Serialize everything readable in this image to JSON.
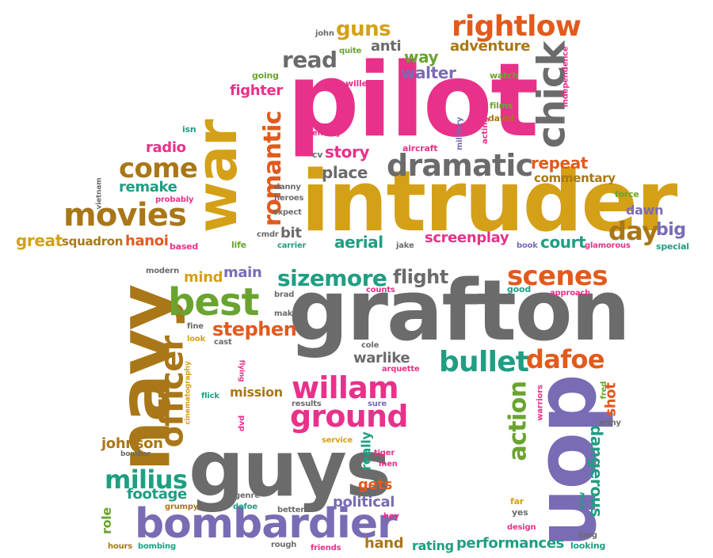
{
  "palette": {
    "pink": "#e8318a",
    "gold": "#d4a017",
    "grey": "#6b6b6b",
    "teal": "#1f9e83",
    "orange": "#e25a1c",
    "purple": "#7a6bb5",
    "green": "#6aa42f",
    "brown": "#a97718"
  },
  "words": [
    {
      "text": "pilot",
      "color": "pink"
    },
    {
      "text": "intruder",
      "color": "gold"
    },
    {
      "text": "grafton",
      "color": "grey"
    },
    {
      "text": "guys",
      "color": "grey"
    },
    {
      "text": "navy",
      "color": "brown"
    },
    {
      "text": "don",
      "color": "purple"
    },
    {
      "text": "war",
      "color": "gold"
    },
    {
      "text": "chick",
      "color": "grey"
    },
    {
      "text": "bombardier",
      "color": "purple"
    },
    {
      "text": "movies",
      "color": "brown"
    },
    {
      "text": "dramatic",
      "color": "grey"
    },
    {
      "text": "officer",
      "color": "brown"
    },
    {
      "text": "best",
      "color": "green"
    },
    {
      "text": "willam",
      "color": "pink"
    },
    {
      "text": "ground",
      "color": "pink"
    },
    {
      "text": "rightlow",
      "color": "orange"
    },
    {
      "text": "romantic",
      "color": "orange"
    },
    {
      "text": "come",
      "color": "brown"
    },
    {
      "text": "read",
      "color": "grey"
    },
    {
      "text": "guns",
      "color": "gold"
    },
    {
      "text": "scenes",
      "color": "orange"
    },
    {
      "text": "bullet",
      "color": "teal"
    },
    {
      "text": "dafoe",
      "color": "orange"
    },
    {
      "text": "sizemore",
      "color": "teal"
    },
    {
      "text": "action",
      "color": "green"
    },
    {
      "text": "milius",
      "color": "teal"
    },
    {
      "text": "day",
      "color": "brown"
    },
    {
      "text": "flight",
      "color": "grey"
    },
    {
      "text": "stephen",
      "color": "orange"
    },
    {
      "text": "dangerous",
      "color": "teal"
    },
    {
      "text": "walter",
      "color": "purple"
    },
    {
      "text": "adventure",
      "color": "brown"
    },
    {
      "text": "way",
      "color": "green"
    },
    {
      "text": "anti",
      "color": "grey"
    },
    {
      "text": "fighter",
      "color": "pink"
    },
    {
      "text": "radio",
      "color": "pink"
    },
    {
      "text": "story",
      "color": "pink"
    },
    {
      "text": "place",
      "color": "grey"
    },
    {
      "text": "remake",
      "color": "teal"
    },
    {
      "text": "repeat",
      "color": "orange"
    },
    {
      "text": "commentary",
      "color": "brown"
    },
    {
      "text": "great",
      "color": "gold"
    },
    {
      "text": "squadron",
      "color": "brown"
    },
    {
      "text": "hanoi",
      "color": "orange"
    },
    {
      "text": "aerial",
      "color": "teal"
    },
    {
      "text": "screenplay",
      "color": "pink"
    },
    {
      "text": "court",
      "color": "teal"
    },
    {
      "text": "big",
      "color": "purple"
    },
    {
      "text": "dawn",
      "color": "purple"
    },
    {
      "text": "bit",
      "color": "grey"
    },
    {
      "text": "mind",
      "color": "gold"
    },
    {
      "text": "main",
      "color": "purple"
    },
    {
      "text": "warlike",
      "color": "grey"
    },
    {
      "text": "mission",
      "color": "brown"
    },
    {
      "text": "johnson",
      "color": "brown"
    },
    {
      "text": "footage",
      "color": "teal"
    },
    {
      "text": "gets",
      "color": "orange"
    },
    {
      "text": "political",
      "color": "purple"
    },
    {
      "text": "shot",
      "color": "orange"
    },
    {
      "text": "really",
      "color": "teal"
    },
    {
      "text": "performances",
      "color": "teal"
    },
    {
      "text": "rating",
      "color": "teal"
    },
    {
      "text": "hand",
      "color": "brown"
    },
    {
      "text": "role",
      "color": "green"
    },
    {
      "text": "john",
      "color": "grey"
    },
    {
      "text": "quite",
      "color": "green"
    },
    {
      "text": "going",
      "color": "green"
    },
    {
      "text": "willem",
      "color": "pink"
    },
    {
      "text": "watch",
      "color": "green"
    },
    {
      "text": "independence",
      "color": "pink"
    },
    {
      "text": "films",
      "color": "green"
    },
    {
      "text": "david",
      "color": "brown"
    },
    {
      "text": "acting",
      "color": "pink"
    },
    {
      "text": "military",
      "color": "purple"
    },
    {
      "text": "aircraft",
      "color": "pink"
    },
    {
      "text": "enemy",
      "color": "pink"
    },
    {
      "text": "cv",
      "color": "grey"
    },
    {
      "text": "isn",
      "color": "teal"
    },
    {
      "text": "vietnam",
      "color": "grey"
    },
    {
      "text": "probably",
      "color": "pink"
    },
    {
      "text": "danny",
      "color": "grey"
    },
    {
      "text": "heroes",
      "color": "grey"
    },
    {
      "text": "expect",
      "color": "grey"
    },
    {
      "text": "cmdr",
      "color": "grey"
    },
    {
      "text": "life",
      "color": "green"
    },
    {
      "text": "carrier",
      "color": "teal"
    },
    {
      "text": "based",
      "color": "pink"
    },
    {
      "text": "jake",
      "color": "grey"
    },
    {
      "text": "book",
      "color": "purple"
    },
    {
      "text": "glamorous",
      "color": "pink"
    },
    {
      "text": "special",
      "color": "teal"
    },
    {
      "text": "force",
      "color": "green"
    },
    {
      "text": "modern",
      "color": "grey"
    },
    {
      "text": "brad",
      "color": "grey"
    },
    {
      "text": "counts",
      "color": "pink"
    },
    {
      "text": "good",
      "color": "teal"
    },
    {
      "text": "approach",
      "color": "pink"
    },
    {
      "text": "make",
      "color": "grey"
    },
    {
      "text": "fine",
      "color": "grey"
    },
    {
      "text": "look",
      "color": "gold"
    },
    {
      "text": "cast",
      "color": "grey"
    },
    {
      "text": "cole",
      "color": "grey"
    },
    {
      "text": "flying",
      "color": "pink"
    },
    {
      "text": "arquette",
      "color": "pink"
    },
    {
      "text": "cinematography",
      "color": "gold"
    },
    {
      "text": "flick",
      "color": "teal"
    },
    {
      "text": "results",
      "color": "grey"
    },
    {
      "text": "sure",
      "color": "purple"
    },
    {
      "text": "dvd",
      "color": "pink"
    },
    {
      "text": "warriors",
      "color": "pink"
    },
    {
      "text": "fred",
      "color": "green"
    },
    {
      "text": "army",
      "color": "grey"
    },
    {
      "text": "service",
      "color": "gold"
    },
    {
      "text": "bomber",
      "color": "grey"
    },
    {
      "text": "tiger",
      "color": "pink"
    },
    {
      "text": "men",
      "color": "pink"
    },
    {
      "text": "genre",
      "color": "grey"
    },
    {
      "text": "defoe",
      "color": "teal"
    },
    {
      "text": "grumpy",
      "color": "brown"
    },
    {
      "text": "better",
      "color": "grey"
    },
    {
      "text": "hey",
      "color": "pink"
    },
    {
      "text": "far",
      "color": "gold"
    },
    {
      "text": "yes",
      "color": "grey"
    },
    {
      "text": "new",
      "color": "teal"
    },
    {
      "text": "design",
      "color": "pink"
    },
    {
      "text": "long",
      "color": "grey"
    },
    {
      "text": "looking",
      "color": "teal"
    },
    {
      "text": "hours",
      "color": "brown"
    },
    {
      "text": "bombing",
      "color": "teal"
    },
    {
      "text": "rough",
      "color": "grey"
    },
    {
      "text": "friends",
      "color": "pink"
    }
  ]
}
